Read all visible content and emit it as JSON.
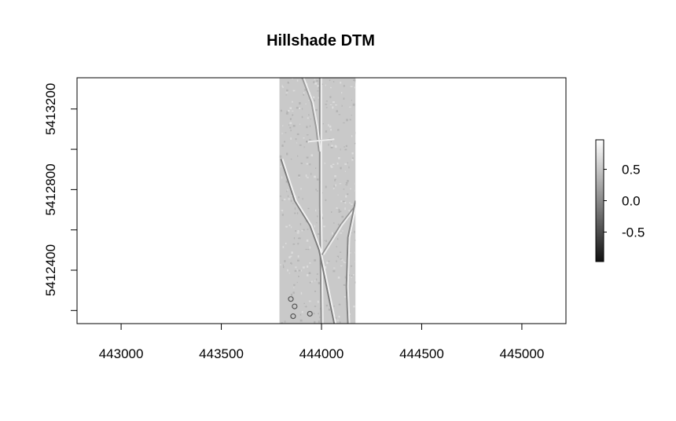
{
  "chart_data": {
    "type": "heatmap",
    "title": "Hillshade DTM",
    "xlabel": "",
    "ylabel": "",
    "xlim": [
      442780,
      445220
    ],
    "ylim": [
      5412135,
      5413355
    ],
    "x_ticks": [
      443000,
      443500,
      444000,
      444500,
      445000
    ],
    "x_tick_labels": [
      "443000",
      "443500",
      "444000",
      "444500",
      "445000"
    ],
    "y_ticks": [
      5412200,
      5412400,
      5412600,
      5412800,
      5413000,
      5413200
    ],
    "y_tick_labels": [
      "5412400",
      "5412800",
      "5413200"
    ],
    "y_labeled_ticks": [
      5412400,
      5412800,
      5413200
    ],
    "raster_extent": {
      "xmin": 443790,
      "xmax": 444170,
      "ymin": 5412135,
      "ymax": 5413355
    },
    "raster_fill_color": "#c9c9c9",
    "legend": {
      "placement": "right",
      "min": -0.97,
      "max": 0.97,
      "ticks": [
        0.5,
        0.0,
        -0.5
      ],
      "tick_labels": [
        "0.5",
        "0.0",
        "-0.5"
      ],
      "color_low": "#111111",
      "color_high": "#ffffff"
    },
    "grid": false
  }
}
